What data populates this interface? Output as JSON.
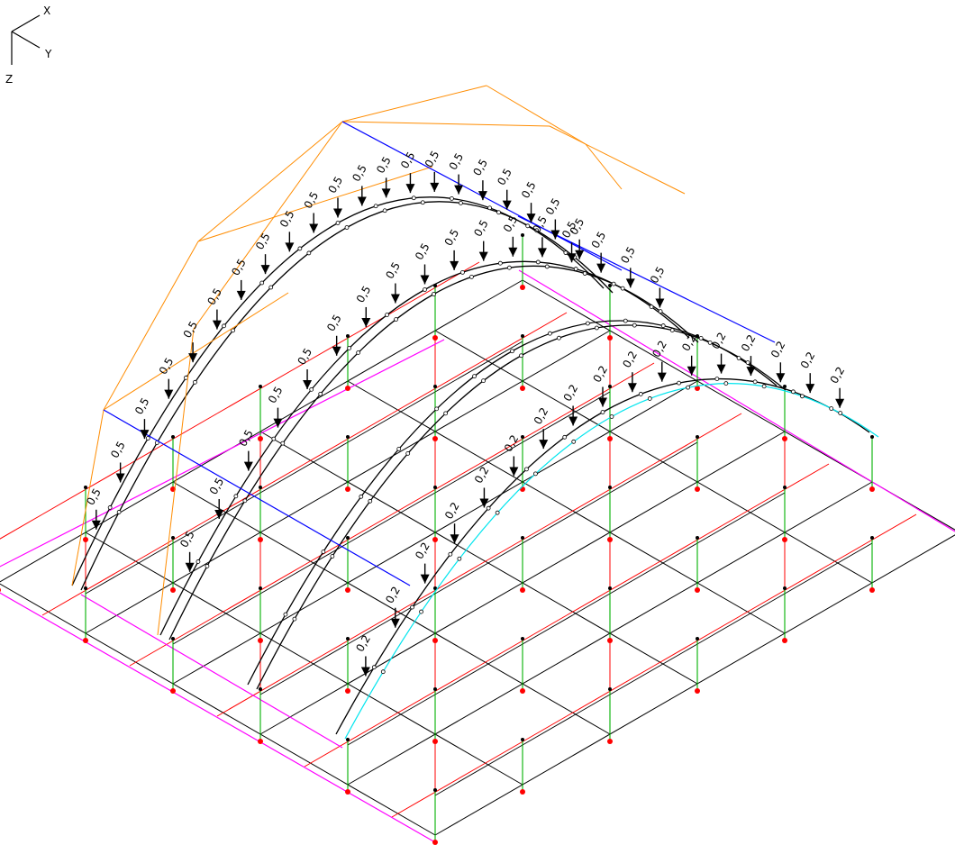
{
  "axes": {
    "x": "X",
    "y": "Y",
    "z": "Z"
  },
  "loads": {
    "arch_outer": "0,5",
    "arch_inner": "0,2"
  },
  "colors": {
    "background": "#ffffff",
    "grid_member": "#000000",
    "brace": "#ff0000",
    "column": "#00b000",
    "edge_beam": "#ff00ff",
    "tie": "#0000ff",
    "arch_brace": "#ff8c00",
    "inner_arch": "#00e5ee",
    "support": "#ff0000",
    "node": "#000000",
    "column_top_node": "#a040c0"
  }
}
